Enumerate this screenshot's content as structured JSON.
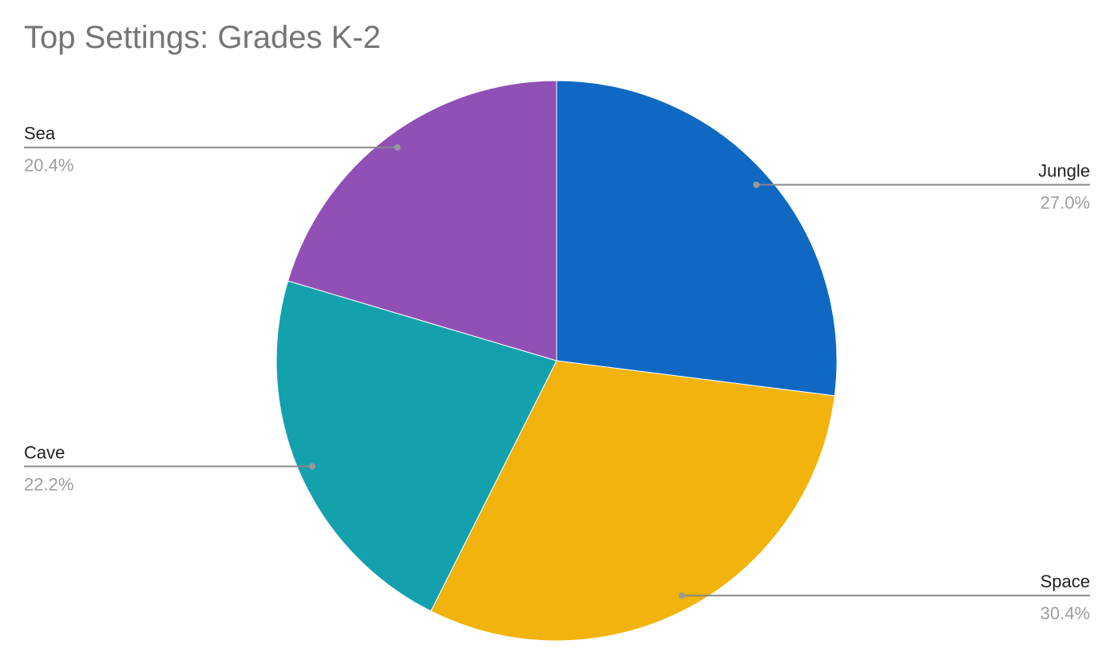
{
  "chart_data": {
    "type": "pie",
    "title": "Top Settings: Grades K-2",
    "categories": [
      "Jungle",
      "Space",
      "Cave",
      "Sea"
    ],
    "values": [
      27.0,
      30.4,
      22.2,
      20.4
    ],
    "value_labels": [
      "27.0%",
      "30.4%",
      "22.2%",
      "20.4%"
    ],
    "colors": [
      "#0f69c2",
      "#f1b30c",
      "#14a1ae",
      "#9050b6"
    ]
  }
}
